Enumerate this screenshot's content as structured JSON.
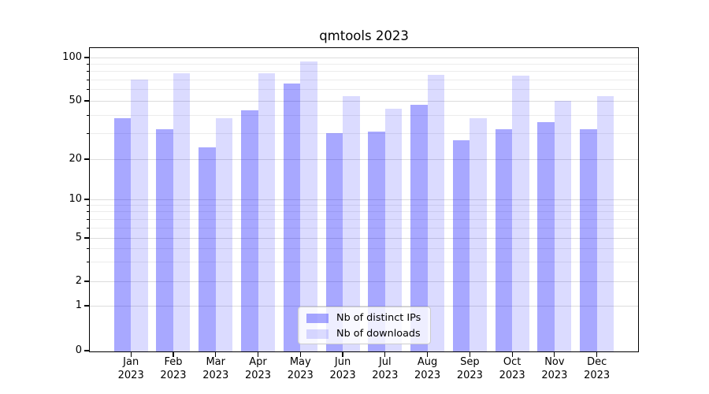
{
  "chart_data": {
    "type": "bar",
    "title": "qmtools 2023",
    "categories": [
      "Jan",
      "Feb",
      "Mar",
      "Apr",
      "May",
      "Jun",
      "Jul",
      "Aug",
      "Sep",
      "Oct",
      "Nov",
      "Dec"
    ],
    "category_year": "2023",
    "series": [
      {
        "name": "Nb of distinct IPs",
        "color": "rgba(0,0,255,0.34)",
        "values": [
          38,
          32,
          24,
          43,
          66,
          30,
          31,
          47,
          27,
          32,
          36,
          32
        ]
      },
      {
        "name": "Nb of downloads",
        "color": "rgba(0,0,255,0.14)",
        "values": [
          70,
          78,
          38,
          78,
          94,
          54,
          44,
          76,
          38,
          75,
          50,
          54
        ]
      }
    ],
    "xlabel": "",
    "ylabel": "",
    "yaxis": {
      "scale": "symlog-like (log above 1, linear 0-1)",
      "major_ticks": [
        0,
        1,
        2,
        5,
        10,
        20,
        50,
        100
      ],
      "minor_ticks": [
        3,
        4,
        6,
        7,
        8,
        9,
        30,
        40,
        60,
        70,
        80,
        90
      ],
      "ylim": [
        0,
        116
      ]
    },
    "grid": "major and minor horizontal gridlines",
    "legend": {
      "position": "lower center",
      "entries": [
        "Nb of distinct IPs",
        "Nb of downloads"
      ]
    }
  },
  "colors": {
    "bar_dark": "rgba(0,0,255,0.34)",
    "bar_light": "rgba(0,0,255,0.14)",
    "grid_major": "#dcdcdc",
    "grid_minor": "#ececec",
    "spine": "#000000",
    "background": "#ffffff",
    "text": "#000000"
  }
}
